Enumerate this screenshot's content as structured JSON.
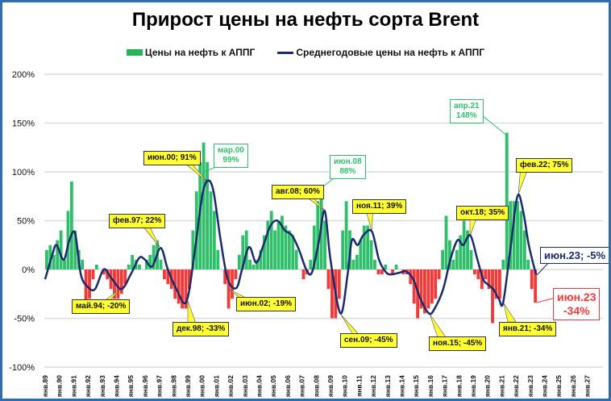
{
  "chart_data": {
    "type": "bar",
    "title": "Прирост цены на нефть сорта Brent",
    "legend": [
      "Цены на нефть к АППГ",
      "Среднегодовые цены на нефть к АППГ"
    ],
    "legend_position": "top",
    "ylim": [
      -100,
      200
    ],
    "yticks": [
      "200%",
      "150%",
      "100%",
      "50%",
      "0%",
      "-50%",
      "-100%"
    ],
    "ytick_values": [
      200,
      150,
      100,
      50,
      0,
      -50,
      -100
    ],
    "xtick_labels": [
      "янв.89",
      "янв.90",
      "янв.91",
      "янв.92",
      "янв.93",
      "янв.94",
      "янв.95",
      "янв.96",
      "янв.97",
      "янв.98",
      "янв.99",
      "янв.00",
      "янв.01",
      "янв.02",
      "янв.03",
      "янв.04",
      "янв.05",
      "янв.06",
      "янв.07",
      "янв.08",
      "янв.09",
      "янв.10",
      "янв.11",
      "янв.12",
      "янв.13",
      "янв.14",
      "янв.15",
      "янв.16",
      "янв.17",
      "янв.18",
      "янв.19",
      "янв.20",
      "янв.21",
      "янв.22",
      "янв.23",
      "янв.24",
      "янв.25",
      "янв.26",
      "янв.27"
    ],
    "x_start_year": 1989,
    "colors": {
      "positive": "#2fbf6a",
      "negative": "#f03a3a",
      "line": "#1a2a6c"
    },
    "series": [
      {
        "name": "Цены на нефть к АППГ",
        "frequency": "quarterly",
        "values": [
          20,
          25,
          15,
          30,
          40,
          10,
          60,
          90,
          40,
          20,
          10,
          -35,
          -30,
          -10,
          5,
          0,
          -5,
          -10,
          -20,
          -30,
          -30,
          -25,
          -15,
          5,
          15,
          10,
          5,
          0,
          10,
          15,
          25,
          30,
          10,
          -10,
          -15,
          -20,
          -30,
          -35,
          -40,
          -40,
          -20,
          40,
          80,
          110,
          130,
          110,
          80,
          60,
          20,
          0,
          -15,
          -40,
          -30,
          -10,
          15,
          35,
          40,
          10,
          5,
          10,
          20,
          35,
          50,
          60,
          40,
          50,
          55,
          45,
          40,
          35,
          20,
          0,
          -10,
          -5,
          10,
          45,
          70,
          80,
          50,
          -20,
          -50,
          -50,
          -30,
          40,
          70,
          40,
          10,
          15,
          30,
          45,
          45,
          30,
          10,
          -5,
          -5,
          5,
          0,
          -5,
          5,
          0,
          -5,
          -5,
          -15,
          -35,
          -50,
          -40,
          -45,
          -40,
          -35,
          -30,
          -10,
          20,
          55,
          30,
          10,
          20,
          35,
          50,
          40,
          20,
          -5,
          -10,
          -20,
          -10,
          -20,
          -55,
          -30,
          -30,
          10,
          140,
          70,
          70,
          70,
          60,
          40,
          10,
          -20,
          -34
        ]
      },
      {
        "name": "Среднегодовые цены на нефть к АППГ",
        "points": [
          [
            1989.0,
            -10
          ],
          [
            1989.5,
            15
          ],
          [
            1989.8,
            25
          ],
          [
            1990.3,
            10
          ],
          [
            1990.7,
            30
          ],
          [
            1991.1,
            37
          ],
          [
            1991.5,
            -5
          ],
          [
            1992.0,
            -18
          ],
          [
            1992.5,
            -20
          ],
          [
            1993.1,
            0
          ],
          [
            1993.6,
            -8
          ],
          [
            1994.35,
            -20
          ],
          [
            1995.0,
            -5
          ],
          [
            1995.6,
            12
          ],
          [
            1996.0,
            10
          ],
          [
            1996.5,
            3
          ],
          [
            1997.1,
            22
          ],
          [
            1997.6,
            0
          ],
          [
            1998.2,
            -20
          ],
          [
            1998.9,
            -33
          ],
          [
            1999.5,
            20
          ],
          [
            2000.0,
            75
          ],
          [
            2000.4,
            91
          ],
          [
            2000.8,
            80
          ],
          [
            2001.3,
            30
          ],
          [
            2001.8,
            -10
          ],
          [
            2002.4,
            -19
          ],
          [
            2002.8,
            0
          ],
          [
            2003.3,
            23
          ],
          [
            2003.8,
            7
          ],
          [
            2004.3,
            25
          ],
          [
            2004.8,
            45
          ],
          [
            2005.3,
            50
          ],
          [
            2005.8,
            40
          ],
          [
            2006.3,
            35
          ],
          [
            2006.8,
            20
          ],
          [
            2007.3,
            0
          ],
          [
            2007.7,
            -3
          ],
          [
            2008.2,
            30
          ],
          [
            2008.6,
            60
          ],
          [
            2009.0,
            10
          ],
          [
            2009.7,
            -45
          ],
          [
            2010.2,
            -5
          ],
          [
            2010.5,
            30
          ],
          [
            2010.9,
            25
          ],
          [
            2011.3,
            35
          ],
          [
            2011.9,
            39
          ],
          [
            2012.4,
            10
          ],
          [
            2012.9,
            -3
          ],
          [
            2013.3,
            -5
          ],
          [
            2013.9,
            -3
          ],
          [
            2014.3,
            -2
          ],
          [
            2014.8,
            -10
          ],
          [
            2015.3,
            -30
          ],
          [
            2015.9,
            -45
          ],
          [
            2016.3,
            -40
          ],
          [
            2016.9,
            -20
          ],
          [
            2017.4,
            10
          ],
          [
            2017.9,
            30
          ],
          [
            2018.3,
            25
          ],
          [
            2018.8,
            35
          ],
          [
            2019.3,
            10
          ],
          [
            2019.7,
            -10
          ],
          [
            2020.0,
            -15
          ],
          [
            2020.4,
            -20
          ],
          [
            2020.8,
            -30
          ],
          [
            2021.1,
            -34
          ],
          [
            2021.6,
            20
          ],
          [
            2022.1,
            75
          ],
          [
            2022.5,
            60
          ],
          [
            2022.9,
            25
          ],
          [
            2023.4,
            -5
          ]
        ]
      }
    ],
    "annotations": {
      "may94": "май.94; -20%",
      "feb97": "фев.97; 22%",
      "dec98": "дек.98; -33%",
      "jun00": "июн.00; 91%",
      "mar00_a": "мар.00",
      "mar00_b": "99%",
      "jun02": "июн.02; -19%",
      "aug08": "авг.08; 60%",
      "jun08_a": "июн.08",
      "jun08_b": "88%",
      "sep09": "сен.09; -45%",
      "nov11": "ноя.11; 39%",
      "nov15": "ноя.15; -45%",
      "oct18": "окт.18; 35%",
      "apr21_a": "апр.21",
      "apr21_b": "148%",
      "jan21": "янв.21; -34%",
      "feb22": "фев.22; 75%",
      "jun23_avg": "июн.23; -5%",
      "jun23_a": "июн.23",
      "jun23_b": "-34%"
    }
  }
}
